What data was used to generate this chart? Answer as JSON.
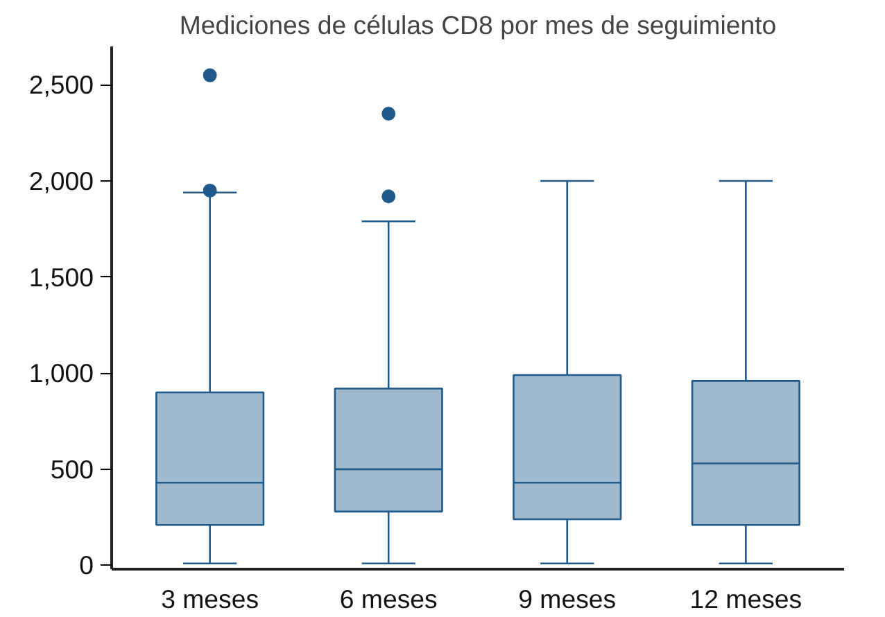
{
  "chart_data": {
    "type": "box",
    "title": "Mediciones de células CD8 por mes de seguimiento",
    "categories": [
      "3 meses",
      "6 meses",
      "9 meses",
      "12 meses"
    ],
    "series": [
      {
        "color": "#1f5a8a",
        "boxes": [
          {
            "low": 10,
            "q1": 210,
            "median": 430,
            "q3": 900,
            "high": 1940,
            "outliers": [
              2550,
              1950
            ]
          },
          {
            "low": 10,
            "q1": 280,
            "median": 500,
            "q3": 920,
            "high": 1790,
            "outliers": [
              2350,
              1920
            ]
          },
          {
            "low": 10,
            "q1": 240,
            "median": 430,
            "q3": 990,
            "high": 2000
          },
          {
            "low": 10,
            "q1": 210,
            "median": 530,
            "q3": 960,
            "high": 2000
          }
        ]
      }
    ],
    "ylim": [
      -20,
      2700
    ],
    "yticks": [
      0,
      {
        "value": 500,
        "label": "500"
      },
      {
        "value": 1000,
        "label": "1,000"
      },
      {
        "value": 1500,
        "label": "1,500"
      },
      {
        "value": 2000,
        "label": "2,000"
      },
      {
        "value": 2500,
        "label": "2,500"
      }
    ],
    "grid": false,
    "marker": "circle"
  }
}
